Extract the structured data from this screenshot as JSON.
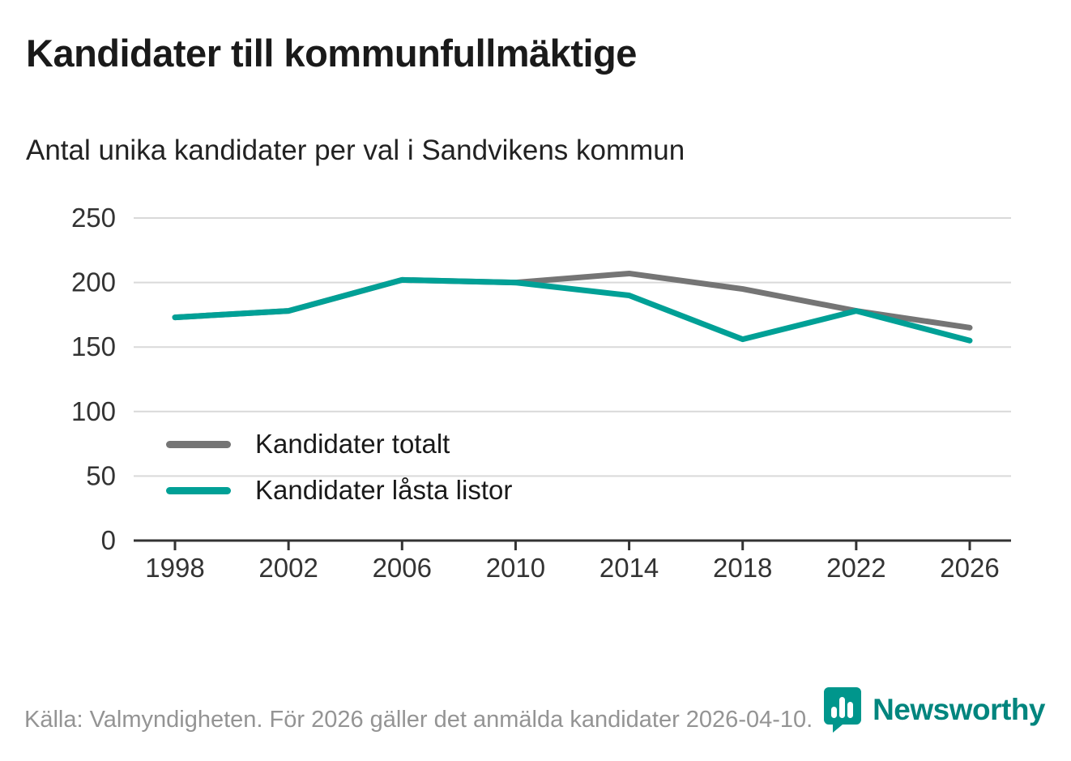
{
  "header": {
    "title": "Kandidater till kommunfullmäktige",
    "subtitle": "Antal unika kandidater per val i Sandvikens kommun"
  },
  "chart_data": {
    "type": "line",
    "x": [
      1998,
      2002,
      2006,
      2010,
      2014,
      2018,
      2022,
      2026
    ],
    "series": [
      {
        "name": "Kandidater totalt",
        "color": "#757575",
        "values": [
          173,
          178,
          202,
          200,
          207,
          195,
          178,
          165
        ]
      },
      {
        "name": "Kandidater låsta listor",
        "color": "#00A096",
        "values": [
          173,
          178,
          202,
          200,
          190,
          156,
          178,
          155
        ]
      }
    ],
    "title": "Kandidater till kommunfullmäktige",
    "subtitle": "Antal unika kandidater per val i Sandvikens kommun",
    "xlabel": "",
    "ylabel": "",
    "ylim": [
      0,
      250
    ],
    "yticks": [
      0,
      50,
      100,
      150,
      200,
      250
    ],
    "grid": true,
    "legend_position": "inside-left",
    "colors": {
      "grid": "#d9d9d9",
      "axis": "#333333",
      "tick_label": "#333333"
    }
  },
  "footer": {
    "source": "Källa: Valmyndigheten. För 2026 gäller det anmälda kandidater 2026-04-10.",
    "brand": "Newsworthy",
    "brand_color": "#00857E",
    "brand_icon_color": "#00968C"
  }
}
